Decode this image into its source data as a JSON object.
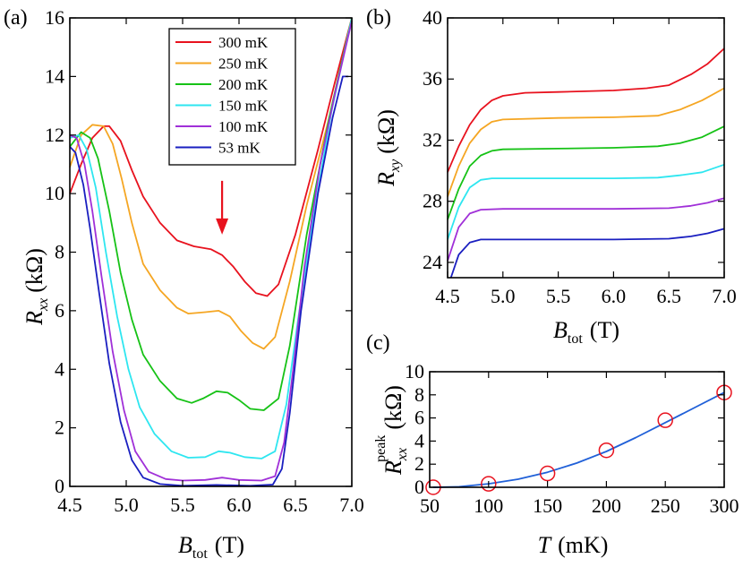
{
  "chart_data": [
    {
      "panel": "(a)",
      "type": "line",
      "xlabel_main": "B",
      "xlabel_sub": "tot",
      "xlabel_unit": "(T)",
      "ylabel_main": "R",
      "ylabel_sub": "xx",
      "ylabel_unit": "(kΩ)",
      "xlim": [
        4.5,
        7.0
      ],
      "ylim": [
        0,
        16
      ],
      "xticks": [
        "4.5",
        "5.0",
        "5.5",
        "6.0",
        "6.5",
        "7.0"
      ],
      "yticks": [
        "0",
        "2",
        "4",
        "6",
        "8",
        "10",
        "12",
        "14",
        "16"
      ],
      "annotation": "arrow pointing to shoulder at B ≈ 5.85 T on the 300 mK curve",
      "arrow_target": [
        5.85,
        8.6
      ],
      "series": [
        {
          "name": "300 mK",
          "color": "#e8121e",
          "points": [
            [
              4.5,
              10.0
            ],
            [
              4.6,
              11.0
            ],
            [
              4.7,
              11.9
            ],
            [
              4.8,
              12.3
            ],
            [
              4.85,
              12.3
            ],
            [
              4.95,
              11.8
            ],
            [
              5.05,
              10.8
            ],
            [
              5.15,
              9.9
            ],
            [
              5.3,
              9.0
            ],
            [
              5.45,
              8.4
            ],
            [
              5.6,
              8.2
            ],
            [
              5.75,
              8.1
            ],
            [
              5.85,
              7.9
            ],
            [
              5.95,
              7.5
            ],
            [
              6.05,
              7.0
            ],
            [
              6.15,
              6.6
            ],
            [
              6.25,
              6.5
            ],
            [
              6.35,
              6.9
            ],
            [
              6.5,
              8.6
            ],
            [
              6.7,
              11.5
            ],
            [
              6.85,
              13.8
            ],
            [
              7.0,
              16.0
            ]
          ]
        },
        {
          "name": "250 mK",
          "color": "#f5a623",
          "points": [
            [
              4.5,
              10.9
            ],
            [
              4.6,
              12.0
            ],
            [
              4.7,
              12.35
            ],
            [
              4.8,
              12.3
            ],
            [
              4.88,
              11.7
            ],
            [
              4.96,
              10.5
            ],
            [
              5.05,
              9.0
            ],
            [
              5.15,
              7.6
            ],
            [
              5.3,
              6.7
            ],
            [
              5.45,
              6.1
            ],
            [
              5.55,
              5.9
            ],
            [
              5.7,
              5.95
            ],
            [
              5.82,
              6.0
            ],
            [
              5.92,
              5.8
            ],
            [
              6.02,
              5.3
            ],
            [
              6.12,
              4.9
            ],
            [
              6.22,
              4.7
            ],
            [
              6.32,
              5.1
            ],
            [
              6.45,
              7.0
            ],
            [
              6.6,
              9.6
            ],
            [
              6.8,
              12.6
            ],
            [
              7.0,
              16.0
            ]
          ]
        },
        {
          "name": "200 mK",
          "color": "#16c216",
          "points": [
            [
              4.5,
              11.6
            ],
            [
              4.6,
              12.1
            ],
            [
              4.68,
              11.9
            ],
            [
              4.75,
              11.2
            ],
            [
              4.85,
              9.4
            ],
            [
              4.95,
              7.3
            ],
            [
              5.05,
              5.7
            ],
            [
              5.15,
              4.5
            ],
            [
              5.3,
              3.6
            ],
            [
              5.45,
              3.0
            ],
            [
              5.58,
              2.85
            ],
            [
              5.68,
              3.0
            ],
            [
              5.8,
              3.25
            ],
            [
              5.9,
              3.2
            ],
            [
              6.0,
              2.95
            ],
            [
              6.1,
              2.65
            ],
            [
              6.22,
              2.6
            ],
            [
              6.35,
              3.0
            ],
            [
              6.45,
              4.8
            ],
            [
              6.6,
              8.6
            ],
            [
              6.8,
              12.6
            ],
            [
              7.0,
              16.0
            ]
          ]
        },
        {
          "name": "150 mK",
          "color": "#2ee6f0",
          "points": [
            [
              4.5,
              11.9
            ],
            [
              4.58,
              12.0
            ],
            [
              4.65,
              11.5
            ],
            [
              4.73,
              10.2
            ],
            [
              4.82,
              8.0
            ],
            [
              4.92,
              5.8
            ],
            [
              5.02,
              4.0
            ],
            [
              5.12,
              2.7
            ],
            [
              5.25,
              1.8
            ],
            [
              5.4,
              1.2
            ],
            [
              5.55,
              0.98
            ],
            [
              5.7,
              1.0
            ],
            [
              5.82,
              1.2
            ],
            [
              5.92,
              1.15
            ],
            [
              6.05,
              1.0
            ],
            [
              6.2,
              0.95
            ],
            [
              6.32,
              1.2
            ],
            [
              6.42,
              2.8
            ],
            [
              6.52,
              5.6
            ],
            [
              6.65,
              9.0
            ],
            [
              6.82,
              12.8
            ],
            [
              7.0,
              16.0
            ]
          ]
        },
        {
          "name": "100 mK",
          "color": "#a030d8",
          "points": [
            [
              4.5,
              12.0
            ],
            [
              4.56,
              11.9
            ],
            [
              4.63,
              11.0
            ],
            [
              4.7,
              9.4
            ],
            [
              4.78,
              7.2
            ],
            [
              4.88,
              4.6
            ],
            [
              4.98,
              2.6
            ],
            [
              5.08,
              1.2
            ],
            [
              5.2,
              0.5
            ],
            [
              5.35,
              0.25
            ],
            [
              5.5,
              0.2
            ],
            [
              5.7,
              0.22
            ],
            [
              5.85,
              0.3
            ],
            [
              6.0,
              0.22
            ],
            [
              6.2,
              0.2
            ],
            [
              6.32,
              0.35
            ],
            [
              6.4,
              1.5
            ],
            [
              6.48,
              4.0
            ],
            [
              6.58,
              7.5
            ],
            [
              6.72,
              11.0
            ],
            [
              6.85,
              13.4
            ],
            [
              7.0,
              15.9
            ]
          ]
        },
        {
          "name": "53 mK",
          "color": "#1a1fc0",
          "points": [
            [
              4.5,
              11.6
            ],
            [
              4.55,
              11.4
            ],
            [
              4.62,
              10.3
            ],
            [
              4.68,
              8.8
            ],
            [
              4.76,
              6.6
            ],
            [
              4.85,
              4.2
            ],
            [
              4.95,
              2.2
            ],
            [
              5.05,
              0.9
            ],
            [
              5.15,
              0.3
            ],
            [
              5.3,
              0.08
            ],
            [
              5.5,
              0.02
            ],
            [
              5.8,
              0.05
            ],
            [
              6.1,
              0.02
            ],
            [
              6.3,
              0.06
            ],
            [
              6.38,
              0.6
            ],
            [
              6.45,
              2.5
            ],
            [
              6.55,
              6.0
            ],
            [
              6.7,
              10.0
            ],
            [
              6.83,
              12.6
            ],
            [
              6.92,
              14.0
            ],
            [
              6.97,
              14.0
            ]
          ]
        }
      ]
    },
    {
      "panel": "(b)",
      "type": "line",
      "xlabel_main": "B",
      "xlabel_sub": "tot",
      "xlabel_unit": "(T)",
      "ylabel_main": "R",
      "ylabel_sub": "xy",
      "ylabel_unit": "(kΩ)",
      "xlim": [
        4.5,
        7.0
      ],
      "ylim": [
        23,
        40
      ],
      "xticks": [
        "4.5",
        "5.0",
        "5.5",
        "6.0",
        "6.5",
        "7.0"
      ],
      "yticks": [
        "24",
        "28",
        "32",
        "36",
        "40"
      ],
      "series": [
        {
          "name": "300 mK",
          "color": "#e8121e",
          "points": [
            [
              4.5,
              29.9
            ],
            [
              4.6,
              31.6
            ],
            [
              4.7,
              33.0
            ],
            [
              4.8,
              34.0
            ],
            [
              4.9,
              34.6
            ],
            [
              5.0,
              34.9
            ],
            [
              5.2,
              35.1
            ],
            [
              5.5,
              35.15
            ],
            [
              6.0,
              35.25
            ],
            [
              6.3,
              35.4
            ],
            [
              6.5,
              35.6
            ],
            [
              6.7,
              36.3
            ],
            [
              6.85,
              37.0
            ],
            [
              7.0,
              38.0
            ]
          ]
        },
        {
          "name": "250 mK",
          "color": "#f5a623",
          "points": [
            [
              4.5,
              28.3
            ],
            [
              4.6,
              30.3
            ],
            [
              4.7,
              31.8
            ],
            [
              4.8,
              32.7
            ],
            [
              4.9,
              33.2
            ],
            [
              5.0,
              33.35
            ],
            [
              5.5,
              33.45
            ],
            [
              6.0,
              33.5
            ],
            [
              6.4,
              33.6
            ],
            [
              6.6,
              34.0
            ],
            [
              6.8,
              34.6
            ],
            [
              7.0,
              35.4
            ]
          ]
        },
        {
          "name": "200 mK",
          "color": "#16c216",
          "points": [
            [
              4.5,
              26.8
            ],
            [
              4.6,
              28.8
            ],
            [
              4.7,
              30.3
            ],
            [
              4.8,
              31.0
            ],
            [
              4.9,
              31.3
            ],
            [
              5.0,
              31.4
            ],
            [
              5.5,
              31.45
            ],
            [
              6.0,
              31.5
            ],
            [
              6.4,
              31.6
            ],
            [
              6.6,
              31.8
            ],
            [
              6.8,
              32.2
            ],
            [
              7.0,
              32.9
            ]
          ]
        },
        {
          "name": "150 mK",
          "color": "#2ee6f0",
          "points": [
            [
              4.5,
              25.5
            ],
            [
              4.6,
              27.6
            ],
            [
              4.7,
              28.9
            ],
            [
              4.8,
              29.4
            ],
            [
              4.9,
              29.5
            ],
            [
              5.5,
              29.5
            ],
            [
              6.0,
              29.5
            ],
            [
              6.4,
              29.55
            ],
            [
              6.6,
              29.7
            ],
            [
              6.8,
              29.9
            ],
            [
              7.0,
              30.4
            ]
          ]
        },
        {
          "name": "100 mK",
          "color": "#a030d8",
          "points": [
            [
              4.5,
              24.1
            ],
            [
              4.6,
              26.3
            ],
            [
              4.7,
              27.2
            ],
            [
              4.8,
              27.45
            ],
            [
              5.0,
              27.5
            ],
            [
              5.5,
              27.5
            ],
            [
              6.0,
              27.5
            ],
            [
              6.5,
              27.55
            ],
            [
              6.7,
              27.7
            ],
            [
              6.85,
              27.9
            ],
            [
              7.0,
              28.2
            ]
          ]
        },
        {
          "name": "53 mK",
          "color": "#1a1fc0",
          "points": [
            [
              4.53,
              23.0
            ],
            [
              4.6,
              24.5
            ],
            [
              4.7,
              25.3
            ],
            [
              4.8,
              25.5
            ],
            [
              5.0,
              25.5
            ],
            [
              5.5,
              25.5
            ],
            [
              6.0,
              25.5
            ],
            [
              6.5,
              25.55
            ],
            [
              6.7,
              25.7
            ],
            [
              6.85,
              25.9
            ],
            [
              7.0,
              26.2
            ]
          ]
        }
      ]
    },
    {
      "panel": "(c)",
      "type": "scatter",
      "xlabel_main": "T",
      "xlabel_unit": "(mK)",
      "ylabel_main": "R",
      "ylabel_sub": "xx",
      "ylabel_sup": "peak",
      "ylabel_unit": "(kΩ)",
      "xlim": [
        50,
        300
      ],
      "ylim": [
        0,
        10
      ],
      "xticks": [
        "50",
        "100",
        "150",
        "200",
        "250",
        "300"
      ],
      "yticks": [
        "0",
        "2",
        "4",
        "6",
        "8",
        "10"
      ],
      "markers": {
        "color": "#e8121e",
        "x": [
          53,
          100,
          150,
          200,
          250,
          300
        ],
        "y": [
          0.0,
          0.3,
          1.2,
          3.2,
          5.8,
          8.2
        ]
      },
      "fit": {
        "color": "#2060d8",
        "x": [
          53,
          75,
          100,
          125,
          150,
          175,
          200,
          225,
          250,
          275,
          300
        ],
        "y": [
          0.0,
          0.05,
          0.3,
          0.7,
          1.3,
          2.1,
          3.1,
          4.3,
          5.6,
          6.9,
          8.2
        ]
      }
    }
  ],
  "legend": [
    {
      "label": "300 mK",
      "color": "#e8121e"
    },
    {
      "label": "250 mK",
      "color": "#f5a623"
    },
    {
      "label": "200 mK",
      "color": "#16c216"
    },
    {
      "label": "150 mK",
      "color": "#2ee6f0"
    },
    {
      "label": "100 mK",
      "color": "#a030d8"
    },
    {
      "label": "53 mK",
      "color": "#1a1fc0"
    }
  ]
}
